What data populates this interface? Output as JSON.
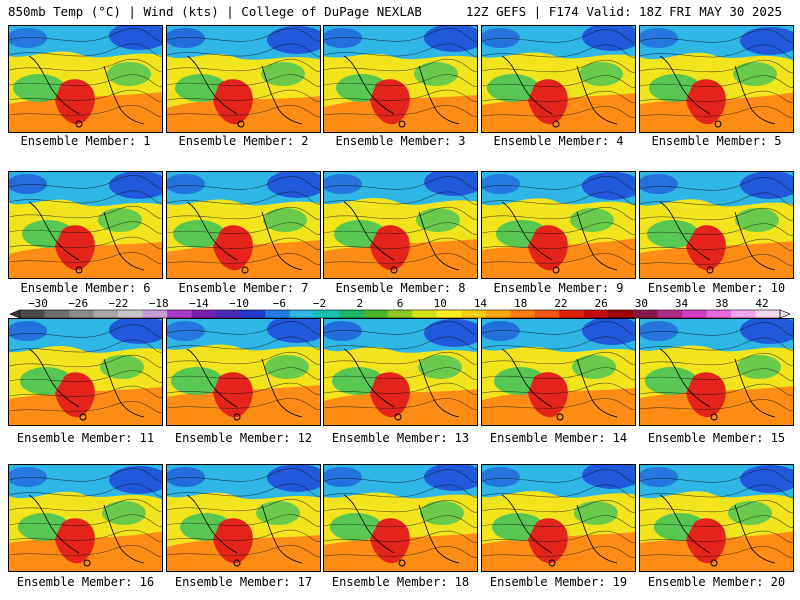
{
  "header": {
    "left": "850mb Temp (°C) | Wind (kts) | College of DuPage NEXLAB",
    "right": "12Z GEFS | F174 Valid: 18Z FRI MAY 30 2025"
  },
  "member_label_prefix": "Ensemble Member: ",
  "members": [
    "Ensemble Member: 1",
    "Ensemble Member: 2",
    "Ensemble Member: 3",
    "Ensemble Member: 4",
    "Ensemble Member: 5",
    "Ensemble Member: 6",
    "Ensemble Member: 7",
    "Ensemble Member: 8",
    "Ensemble Member: 9",
    "Ensemble Member: 10",
    "Ensemble Member: 11",
    "Ensemble Member: 12",
    "Ensemble Member: 13",
    "Ensemble Member: 14",
    "Ensemble Member: 15",
    "Ensemble Member: 16",
    "Ensemble Member: 17",
    "Ensemble Member: 18",
    "Ensemble Member: 19",
    "Ensemble Member: 20"
  ],
  "colorbar": {
    "ticks": [
      "-30",
      "-26",
      "-22",
      "-18",
      "-14",
      "-10",
      "-6",
      "-2",
      "2",
      "6",
      "10",
      "14",
      "18",
      "22",
      "26",
      "30",
      "34",
      "38",
      "42"
    ],
    "colors": [
      "#4a4a4a",
      "#6e6e6e",
      "#8c8c8c",
      "#a9a9a9",
      "#c6c6c6",
      "#c79ad9",
      "#a83cc9",
      "#7b1fb2",
      "#4b2bb6",
      "#1e3ad1",
      "#1d7be6",
      "#2db6e0",
      "#14c0b0",
      "#1cb66a",
      "#46b82a",
      "#8cc81e",
      "#d6e21a",
      "#fff020",
      "#ffcf18",
      "#ffaa12",
      "#ff7d10",
      "#f4540f",
      "#e0200c",
      "#c30a0a",
      "#9c0606",
      "#8a1a4c",
      "#b02a8a",
      "#d23cc2",
      "#e56ae0",
      "#f0a6f0",
      "#f6d8f6"
    ]
  },
  "map_colors": {
    "cold": "#1f4fd8",
    "cool": "#2fb6e6",
    "mild": "#3cc25c",
    "warm": "#f2e41c",
    "hot": "#ff8c14",
    "vhot": "#e4241a"
  }
}
